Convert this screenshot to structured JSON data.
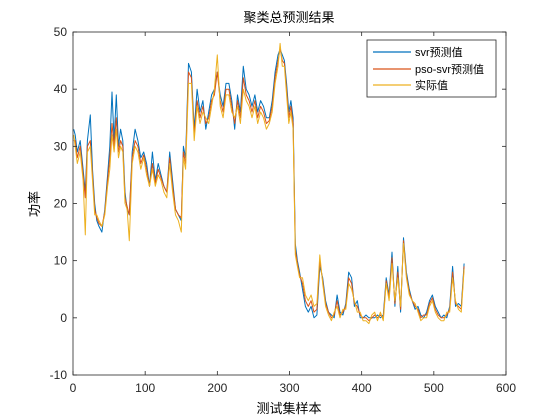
{
  "chart_data": {
    "type": "line",
    "title": "聚类总预测结果",
    "xlabel": "测试集样本",
    "ylabel": "功率",
    "xlim": [
      0,
      600
    ],
    "ylim": [
      -10,
      50
    ],
    "xticks": [
      0,
      100,
      200,
      300,
      400,
      500,
      600
    ],
    "yticks": [
      -10,
      0,
      10,
      20,
      30,
      40,
      50
    ],
    "grid": false,
    "legend_position": "top-right",
    "series": [
      {
        "name": "svr预测值",
        "color": "#0072BD",
        "x": [
          1,
          3,
          6,
          10,
          14,
          17,
          20,
          24,
          27,
          30,
          33,
          36,
          40,
          44,
          48,
          51,
          54,
          57,
          60,
          63,
          66,
          69,
          72,
          75,
          78,
          82,
          86,
          90,
          94,
          98,
          102,
          106,
          110,
          114,
          118,
          122,
          126,
          130,
          134,
          138,
          142,
          146,
          150,
          153,
          156,
          160,
          164,
          168,
          172,
          176,
          180,
          184,
          188,
          192,
          196,
          200,
          204,
          208,
          212,
          216,
          220,
          224,
          228,
          232,
          236,
          240,
          244,
          248,
          252,
          256,
          260,
          264,
          268,
          272,
          276,
          280,
          284,
          287,
          290,
          293,
          296,
          299,
          302,
          305,
          308,
          311,
          314,
          318,
          322,
          326,
          330,
          334,
          338,
          342,
          346,
          350,
          354,
          358,
          362,
          366,
          370,
          374,
          378,
          382,
          386,
          390,
          394,
          398,
          402,
          406,
          410,
          414,
          418,
          422,
          426,
          430,
          434,
          438,
          442,
          446,
          450,
          454,
          458,
          462,
          466,
          470,
          474,
          478,
          482,
          486,
          490,
          494,
          498,
          502,
          506,
          510,
          514,
          518,
          522,
          526,
          530,
          534,
          538,
          542
        ],
        "values": [
          33.0,
          32.0,
          29.0,
          31.0,
          26.0,
          22.0,
          31.0,
          35.5,
          26.0,
          20.0,
          17.0,
          16.0,
          15.0,
          19.0,
          25.0,
          30.0,
          39.5,
          31.0,
          39.0,
          30.0,
          33.0,
          31.0,
          22.0,
          19.0,
          18.0,
          29.0,
          33.0,
          31.0,
          28.0,
          29.0,
          27.0,
          23.0,
          29.0,
          24.0,
          27.0,
          25.0,
          23.0,
          22.0,
          29.0,
          24.0,
          19.0,
          18.0,
          17.0,
          30.0,
          28.0,
          44.5,
          43.0,
          33.0,
          40.0,
          36.0,
          38.0,
          33.0,
          36.0,
          39.0,
          40.0,
          43.0,
          39.0,
          37.0,
          41.0,
          41.0,
          38.0,
          33.0,
          39.0,
          36.0,
          44.0,
          40.0,
          39.0,
          37.0,
          39.0,
          36.0,
          38.0,
          37.0,
          35.0,
          35.0,
          38.0,
          43.0,
          46.0,
          47.0,
          46.0,
          45.0,
          41.0,
          36.0,
          38.0,
          35.0,
          13.0,
          10.0,
          8.0,
          5.0,
          2.0,
          1.0,
          2.0,
          0.0,
          0.5,
          9.0,
          7.0,
          3.0,
          1.0,
          0.5,
          0.0,
          4.0,
          1.0,
          0.5,
          2.5,
          8.0,
          7.0,
          2.0,
          3.0,
          0.0,
          0.0,
          0.5,
          0.0,
          0.0,
          0.0,
          0.5,
          0.0,
          0.5,
          7.0,
          4.0,
          11.5,
          2.0,
          9.0,
          1.0,
          14.0,
          8.0,
          5.0,
          3.0,
          1.5,
          2.0,
          0.5,
          0.0,
          1.0,
          3.0,
          4.0,
          2.0,
          1.0,
          0.0,
          0.5,
          0.0,
          2.0,
          9.0,
          2.0,
          2.5,
          2.0,
          9.5
        ],
        "note_x_axis": "approximate sample index"
      },
      {
        "name": "pso-svr预测值",
        "color": "#D95319",
        "x": [
          1,
          3,
          6,
          10,
          14,
          17,
          20,
          24,
          27,
          30,
          33,
          36,
          40,
          44,
          48,
          51,
          54,
          57,
          60,
          63,
          66,
          69,
          72,
          75,
          78,
          82,
          86,
          90,
          94,
          98,
          102,
          106,
          110,
          114,
          118,
          122,
          126,
          130,
          134,
          138,
          142,
          146,
          150,
          153,
          156,
          160,
          164,
          168,
          172,
          176,
          180,
          184,
          188,
          192,
          196,
          200,
          204,
          208,
          212,
          216,
          220,
          224,
          228,
          232,
          236,
          240,
          244,
          248,
          252,
          256,
          260,
          264,
          268,
          272,
          276,
          280,
          284,
          287,
          290,
          293,
          296,
          299,
          302,
          305,
          308,
          311,
          314,
          318,
          322,
          326,
          330,
          334,
          338,
          342,
          346,
          350,
          354,
          358,
          362,
          366,
          370,
          374,
          378,
          382,
          386,
          390,
          394,
          398,
          402,
          406,
          410,
          414,
          418,
          422,
          426,
          430,
          434,
          438,
          442,
          446,
          450,
          454,
          458,
          462,
          466,
          470,
          474,
          478,
          482,
          486,
          490,
          494,
          498,
          502,
          506,
          510,
          514,
          518,
          522,
          526,
          530,
          534,
          538,
          542
        ],
        "values": [
          31.0,
          31.0,
          28.0,
          30.0,
          25.0,
          21.0,
          30.0,
          31.0,
          25.0,
          19.0,
          17.5,
          16.5,
          16.0,
          18.5,
          24.0,
          28.0,
          34.0,
          30.0,
          35.0,
          29.0,
          31.0,
          30.0,
          21.0,
          19.5,
          18.0,
          28.0,
          31.0,
          30.0,
          27.0,
          28.5,
          26.0,
          23.0,
          27.0,
          23.5,
          26.0,
          24.5,
          23.0,
          22.0,
          28.0,
          23.0,
          19.0,
          18.0,
          17.5,
          29.0,
          27.0,
          43.0,
          42.0,
          32.0,
          38.0,
          35.0,
          37.0,
          34.0,
          35.0,
          38.0,
          39.0,
          43.0,
          38.0,
          36.0,
          40.0,
          40.0,
          37.0,
          34.0,
          38.0,
          35.0,
          42.0,
          39.0,
          38.0,
          36.0,
          38.0,
          35.0,
          37.0,
          36.0,
          34.0,
          34.5,
          37.0,
          42.0,
          45.0,
          47.0,
          45.0,
          44.5,
          40.0,
          35.0,
          37.0,
          34.0,
          12.0,
          9.5,
          7.5,
          6.0,
          3.0,
          2.0,
          3.0,
          1.0,
          1.5,
          10.0,
          6.5,
          2.5,
          1.0,
          0.0,
          0.5,
          3.0,
          0.5,
          1.0,
          2.0,
          7.0,
          6.0,
          2.5,
          2.0,
          0.5,
          0.0,
          0.0,
          -0.5,
          0.0,
          0.5,
          0.0,
          0.5,
          0.0,
          6.5,
          3.5,
          10.5,
          2.5,
          8.0,
          1.5,
          13.5,
          7.5,
          4.5,
          3.0,
          2.0,
          1.5,
          0.0,
          0.5,
          0.5,
          2.5,
          3.5,
          1.5,
          0.5,
          0.0,
          0.0,
          0.5,
          1.5,
          8.0,
          2.5,
          2.0,
          1.5,
          9.0
        ],
        "note_x_axis": "approximate sample index"
      },
      {
        "name": "实际值",
        "color": "#EDB120",
        "x": [
          1,
          3,
          6,
          10,
          14,
          17,
          20,
          24,
          27,
          30,
          33,
          36,
          40,
          44,
          48,
          51,
          54,
          57,
          60,
          63,
          66,
          69,
          72,
          75,
          78,
          82,
          86,
          90,
          94,
          98,
          102,
          106,
          110,
          114,
          118,
          122,
          126,
          130,
          134,
          138,
          142,
          146,
          150,
          153,
          156,
          160,
          164,
          168,
          172,
          176,
          180,
          184,
          188,
          192,
          196,
          200,
          204,
          208,
          212,
          216,
          220,
          224,
          228,
          232,
          236,
          240,
          244,
          248,
          252,
          256,
          260,
          264,
          268,
          272,
          276,
          280,
          284,
          287,
          290,
          293,
          296,
          299,
          302,
          305,
          308,
          311,
          314,
          318,
          322,
          326,
          330,
          334,
          338,
          342,
          346,
          350,
          354,
          358,
          362,
          366,
          370,
          374,
          378,
          382,
          386,
          390,
          394,
          398,
          402,
          406,
          410,
          414,
          418,
          422,
          426,
          430,
          434,
          438,
          442,
          446,
          450,
          454,
          458,
          462,
          466,
          470,
          474,
          478,
          482,
          486,
          490,
          494,
          498,
          502,
          506,
          510,
          514,
          518,
          522,
          526,
          530,
          534,
          538,
          542
        ],
        "values": [
          32.0,
          30.0,
          27.0,
          29.0,
          24.0,
          14.5,
          29.0,
          30.0,
          24.0,
          18.0,
          18.0,
          17.0,
          16.0,
          18.0,
          23.0,
          26.0,
          32.0,
          29.0,
          33.0,
          28.0,
          30.0,
          29.0,
          20.0,
          19.0,
          13.5,
          27.0,
          30.0,
          29.0,
          26.0,
          28.0,
          25.0,
          23.0,
          26.0,
          23.0,
          25.0,
          24.0,
          22.0,
          21.0,
          27.0,
          22.0,
          18.0,
          17.0,
          15.0,
          28.0,
          26.0,
          41.0,
          41.0,
          31.0,
          37.0,
          34.0,
          36.0,
          35.0,
          34.0,
          37.0,
          40.0,
          46.0,
          37.0,
          35.0,
          39.0,
          39.0,
          36.0,
          35.0,
          37.0,
          34.0,
          40.0,
          38.0,
          37.0,
          35.0,
          37.0,
          34.0,
          36.0,
          35.0,
          33.0,
          34.0,
          36.0,
          41.0,
          44.0,
          48.0,
          44.0,
          44.0,
          39.0,
          34.0,
          36.0,
          33.0,
          11.0,
          9.0,
          7.0,
          7.0,
          4.0,
          3.0,
          4.0,
          2.0,
          2.5,
          11.0,
          6.0,
          2.0,
          0.5,
          -0.5,
          1.0,
          2.0,
          0.0,
          1.5,
          1.5,
          6.0,
          5.0,
          3.0,
          1.0,
          1.0,
          -0.5,
          -0.5,
          -1.0,
          0.5,
          1.0,
          -0.5,
          1.0,
          -0.5,
          6.0,
          3.0,
          9.5,
          3.0,
          7.0,
          2.0,
          13.0,
          7.0,
          4.0,
          3.0,
          2.5,
          1.0,
          -0.5,
          0.0,
          0.0,
          2.0,
          3.0,
          1.0,
          0.0,
          -0.5,
          -0.5,
          1.0,
          1.0,
          7.0,
          3.0,
          1.5,
          1.0,
          8.5
        ],
        "note_x_axis": "approximate sample index"
      }
    ]
  }
}
